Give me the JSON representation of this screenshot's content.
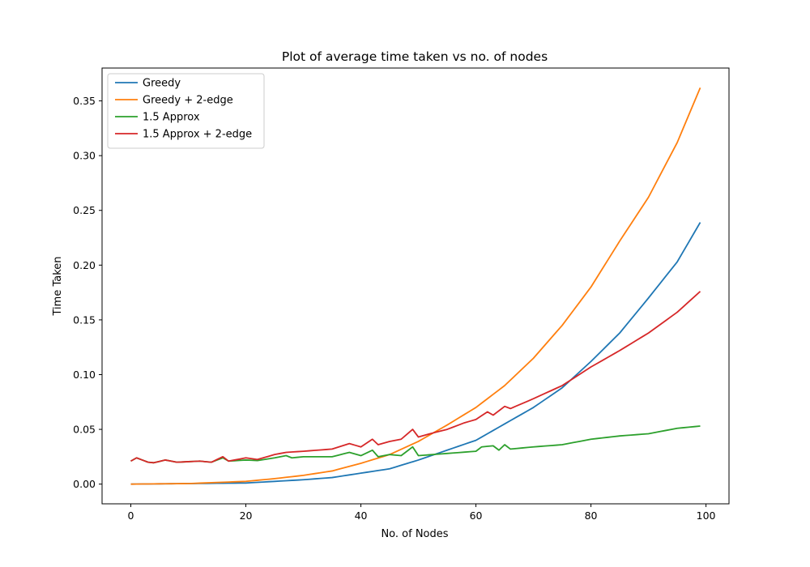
{
  "chart_data": {
    "type": "line",
    "title": "Plot of average time taken vs no. of nodes",
    "xlabel": "No. of Nodes",
    "ylabel": "Time Taken",
    "xlim": [
      -5,
      104
    ],
    "ylim": [
      -0.018,
      0.38
    ],
    "xticks": [
      0,
      20,
      40,
      60,
      80,
      100
    ],
    "yticks": [
      0.0,
      0.05,
      0.1,
      0.15,
      0.2,
      0.25,
      0.3,
      0.35
    ],
    "ytick_decimals": 2,
    "grid": false,
    "legend_position": "top-left",
    "series": [
      {
        "name": "Greedy",
        "color": "#1f77b4",
        "anchors": [
          [
            0,
            0.0
          ],
          [
            10,
            0.0005
          ],
          [
            20,
            0.001
          ],
          [
            30,
            0.004
          ],
          [
            35,
            0.006
          ],
          [
            40,
            0.01
          ],
          [
            45,
            0.014
          ],
          [
            50,
            0.022
          ],
          [
            55,
            0.031
          ],
          [
            60,
            0.04
          ],
          [
            65,
            0.055
          ],
          [
            70,
            0.07
          ],
          [
            75,
            0.088
          ],
          [
            80,
            0.112
          ],
          [
            85,
            0.138
          ],
          [
            90,
            0.17
          ],
          [
            95,
            0.203
          ],
          [
            99,
            0.239
          ]
        ]
      },
      {
        "name": "Greedy + 2-edge",
        "color": "#ff7f0e",
        "anchors": [
          [
            0,
            0.0
          ],
          [
            10,
            0.0005
          ],
          [
            20,
            0.0025
          ],
          [
            25,
            0.005
          ],
          [
            30,
            0.008
          ],
          [
            35,
            0.012
          ],
          [
            40,
            0.019
          ],
          [
            45,
            0.027
          ],
          [
            50,
            0.039
          ],
          [
            55,
            0.054
          ],
          [
            60,
            0.07
          ],
          [
            65,
            0.09
          ],
          [
            70,
            0.115
          ],
          [
            75,
            0.145
          ],
          [
            80,
            0.18
          ],
          [
            85,
            0.222
          ],
          [
            90,
            0.262
          ],
          [
            95,
            0.312
          ],
          [
            99,
            0.362
          ]
        ]
      },
      {
        "name": "1.5 Approx",
        "color": "#2ca02c",
        "anchors": [
          [
            0,
            0.021
          ],
          [
            1,
            0.024
          ],
          [
            3,
            0.02
          ],
          [
            4,
            0.0195
          ],
          [
            6,
            0.022
          ],
          [
            8,
            0.02
          ],
          [
            12,
            0.021
          ],
          [
            14,
            0.02
          ],
          [
            16,
            0.024
          ],
          [
            17,
            0.021
          ],
          [
            20,
            0.022
          ],
          [
            22,
            0.0215
          ],
          [
            25,
            0.024
          ],
          [
            27,
            0.026
          ],
          [
            28,
            0.024
          ],
          [
            30,
            0.025
          ],
          [
            35,
            0.025
          ],
          [
            38,
            0.029
          ],
          [
            40,
            0.026
          ],
          [
            42,
            0.031
          ],
          [
            43,
            0.025
          ],
          [
            45,
            0.027
          ],
          [
            47,
            0.026
          ],
          [
            49,
            0.034
          ],
          [
            50,
            0.026
          ],
          [
            55,
            0.028
          ],
          [
            60,
            0.03
          ],
          [
            61,
            0.034
          ],
          [
            63,
            0.035
          ],
          [
            64,
            0.031
          ],
          [
            65,
            0.036
          ],
          [
            66,
            0.032
          ],
          [
            70,
            0.034
          ],
          [
            75,
            0.036
          ],
          [
            80,
            0.041
          ],
          [
            85,
            0.044
          ],
          [
            90,
            0.046
          ],
          [
            95,
            0.051
          ],
          [
            99,
            0.053
          ]
        ]
      },
      {
        "name": "1.5 Approx + 2-edge",
        "color": "#d62728",
        "anchors": [
          [
            0,
            0.021
          ],
          [
            1,
            0.024
          ],
          [
            3,
            0.02
          ],
          [
            4,
            0.0195
          ],
          [
            6,
            0.022
          ],
          [
            8,
            0.02
          ],
          [
            12,
            0.021
          ],
          [
            14,
            0.02
          ],
          [
            16,
            0.025
          ],
          [
            17,
            0.021
          ],
          [
            20,
            0.024
          ],
          [
            22,
            0.0225
          ],
          [
            25,
            0.027
          ],
          [
            27,
            0.029
          ],
          [
            30,
            0.03
          ],
          [
            35,
            0.032
          ],
          [
            38,
            0.037
          ],
          [
            40,
            0.034
          ],
          [
            42,
            0.041
          ],
          [
            43,
            0.036
          ],
          [
            45,
            0.039
          ],
          [
            47,
            0.041
          ],
          [
            49,
            0.05
          ],
          [
            50,
            0.043
          ],
          [
            52,
            0.046
          ],
          [
            55,
            0.05
          ],
          [
            58,
            0.056
          ],
          [
            60,
            0.059
          ],
          [
            62,
            0.066
          ],
          [
            63,
            0.063
          ],
          [
            65,
            0.071
          ],
          [
            66,
            0.069
          ],
          [
            70,
            0.078
          ],
          [
            75,
            0.09
          ],
          [
            80,
            0.107
          ],
          [
            85,
            0.122
          ],
          [
            90,
            0.138
          ],
          [
            95,
            0.157
          ],
          [
            99,
            0.176
          ]
        ]
      }
    ]
  }
}
